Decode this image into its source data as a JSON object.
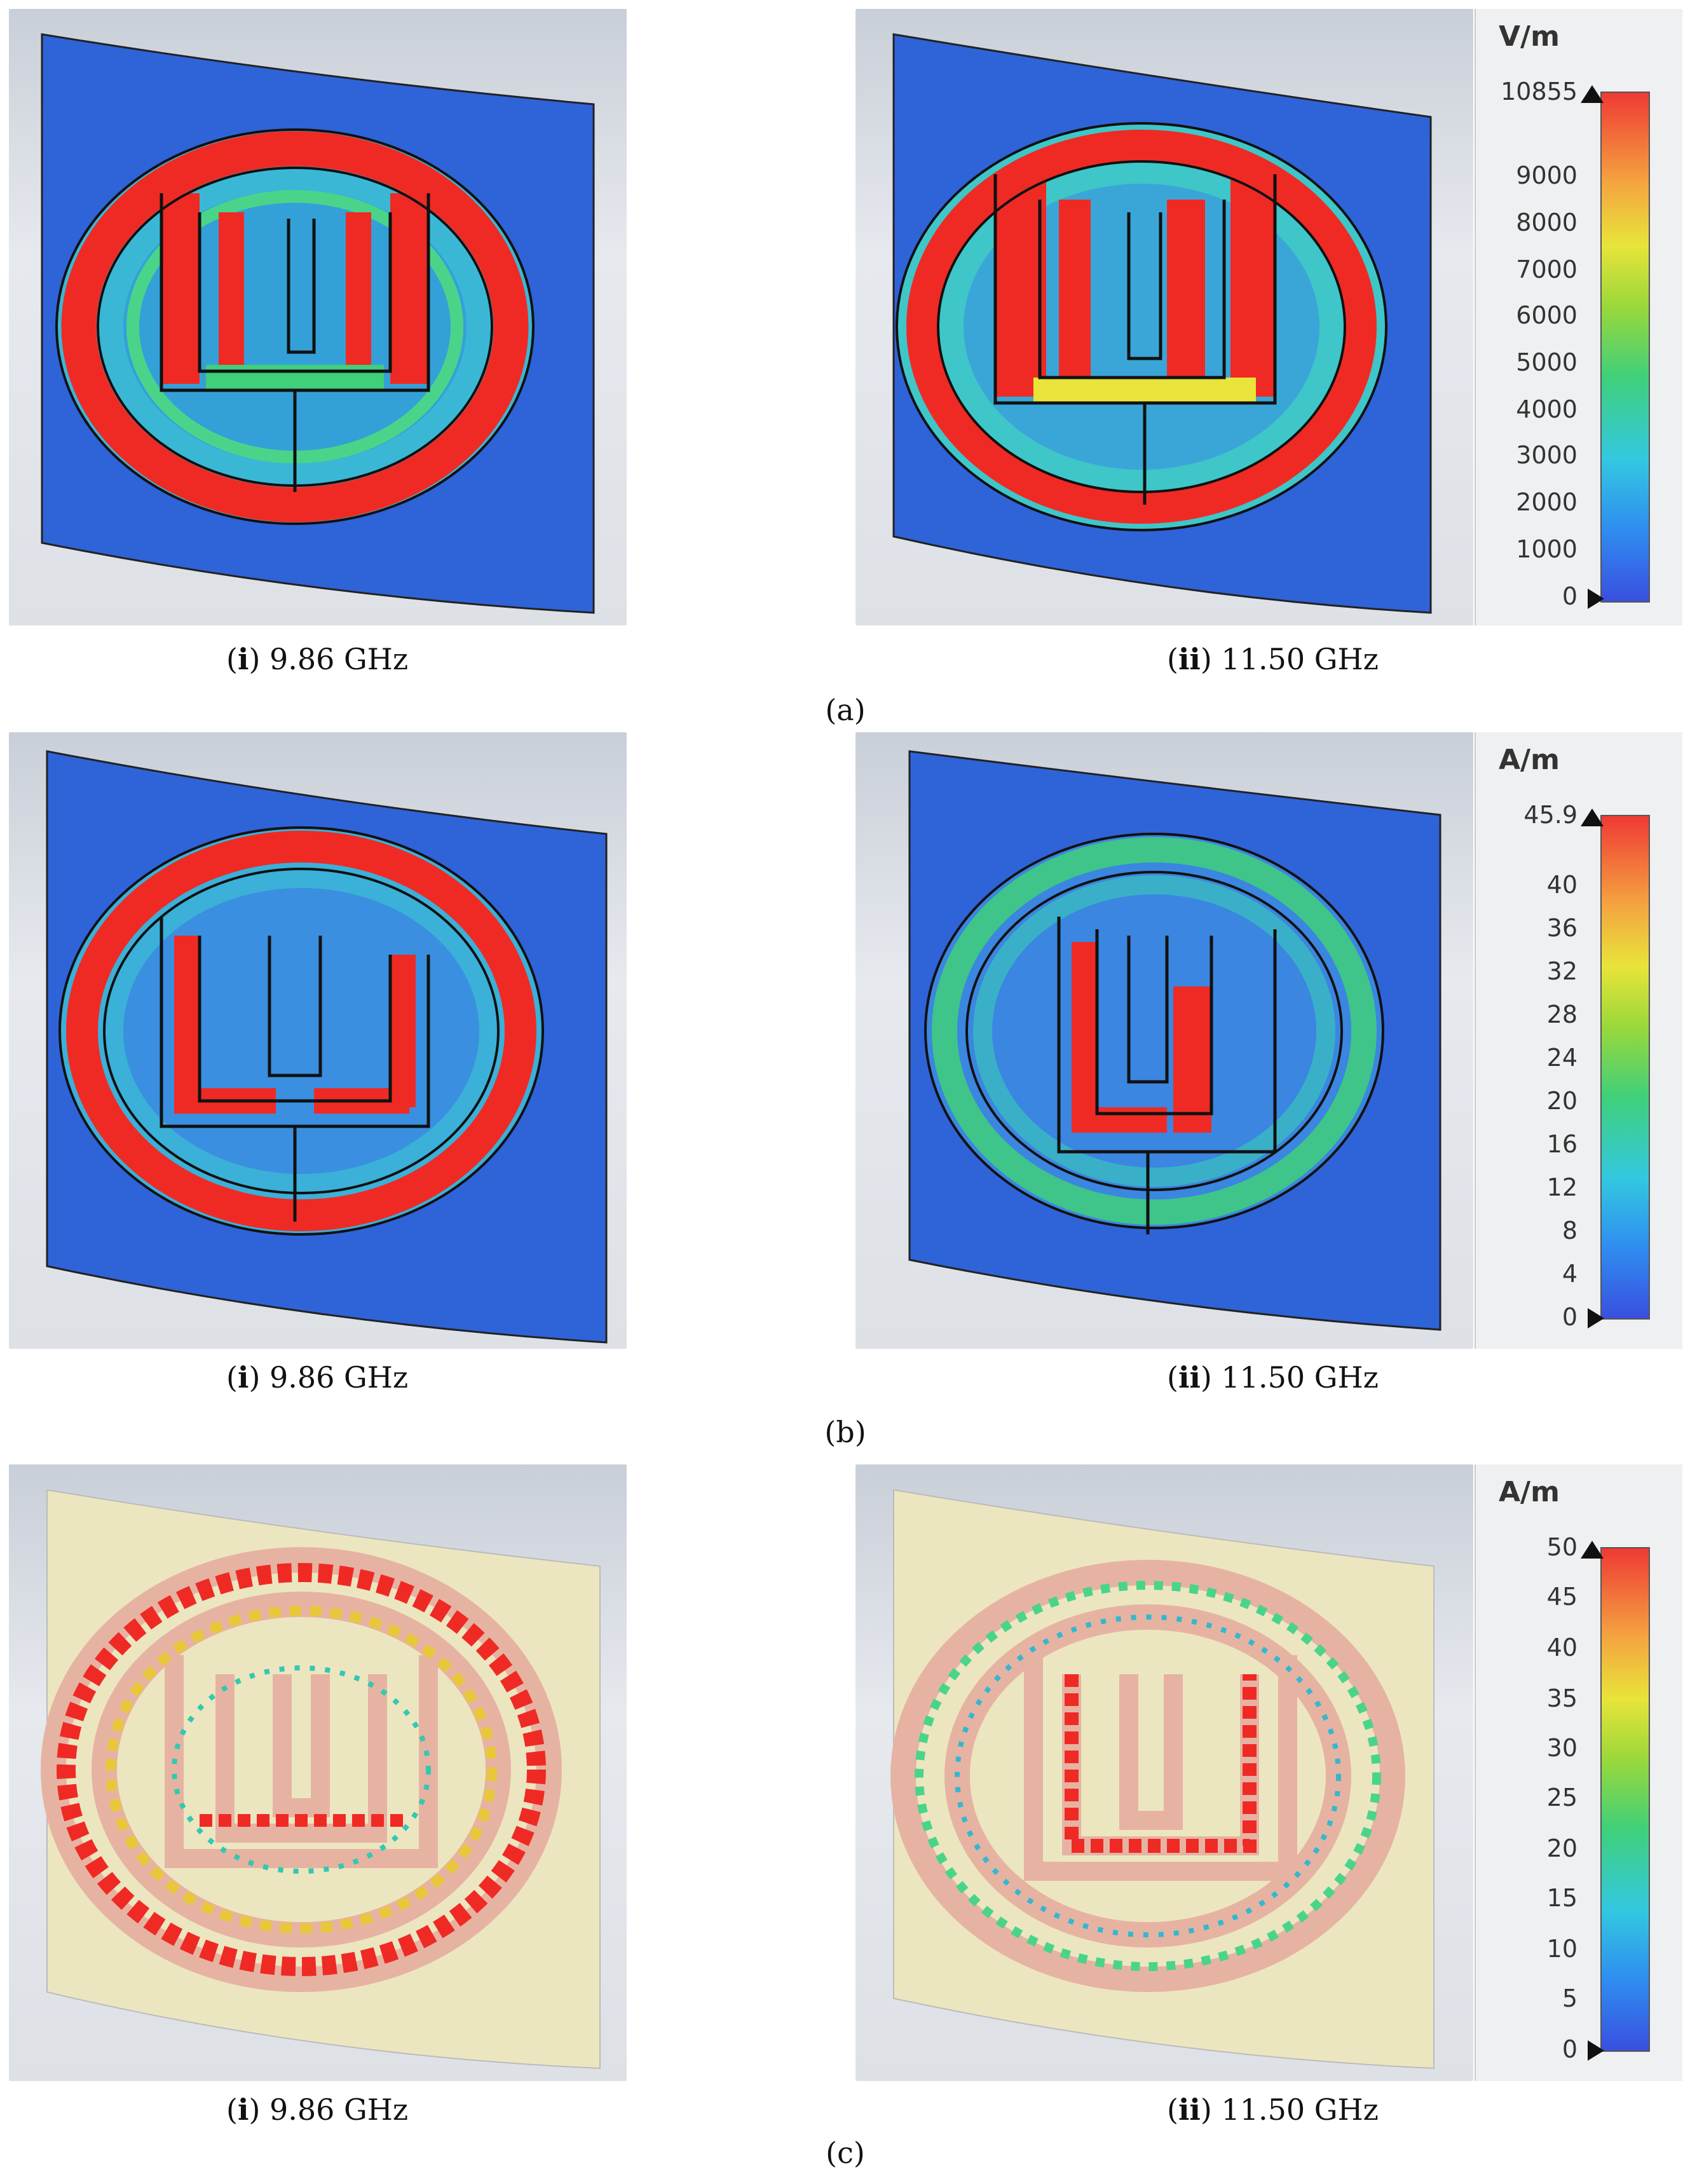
{
  "figure": {
    "rows": [
      {
        "id": "a",
        "label": "(a)",
        "kind": "E-field magnitude",
        "colorbar": {
          "unit": "V/m",
          "max_label": "10855",
          "ticks": [
            "9000",
            "8000",
            "7000",
            "6000",
            "5000",
            "4000",
            "3000",
            "2000",
            "1000",
            "0"
          ]
        },
        "panels": [
          {
            "prefix": "i",
            "freq": "9.86 GHz"
          },
          {
            "prefix": "ii",
            "freq": "11.50 GHz"
          }
        ]
      },
      {
        "id": "b",
        "label": "(b)",
        "kind": "H-field magnitude",
        "colorbar": {
          "unit": "A/m",
          "max_label": "45.9",
          "ticks": [
            "40",
            "36",
            "32",
            "28",
            "24",
            "20",
            "16",
            "12",
            "8",
            "4",
            "0"
          ]
        },
        "panels": [
          {
            "prefix": "i",
            "freq": "9.86 GHz"
          },
          {
            "prefix": "ii",
            "freq": "11.50 GHz"
          }
        ]
      },
      {
        "id": "c",
        "label": "(c)",
        "kind": "surface current vectors",
        "colorbar": {
          "unit": "A/m",
          "max_label": "50",
          "ticks": [
            "45",
            "40",
            "35",
            "30",
            "25",
            "20",
            "15",
            "10",
            "5",
            "0"
          ]
        },
        "panels": [
          {
            "prefix": "i",
            "freq": "9.86 GHz"
          },
          {
            "prefix": "ii",
            "freq": "11.50 GHz"
          }
        ]
      }
    ],
    "colors": {
      "low": "#2f4fd8",
      "mid": "#3fd07a",
      "high": "#ef2a24",
      "substrate_c": "#ece6c0",
      "ring_c": "#e6b3a3"
    }
  }
}
